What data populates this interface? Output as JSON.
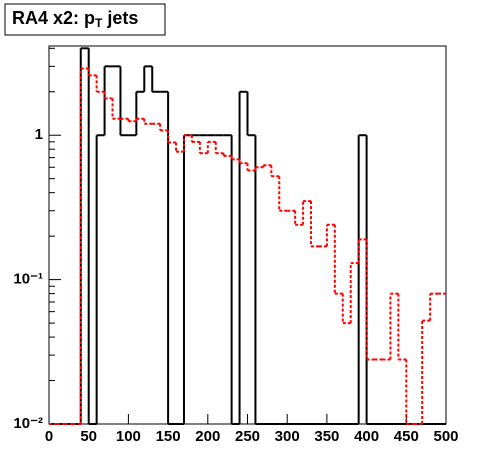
{
  "chart_data": {
    "type": "histogram",
    "title": [
      "RA4 x2: p",
      "T",
      " jets"
    ],
    "bins": [
      0,
      10,
      20,
      30,
      40,
      50,
      60,
      70,
      80,
      90,
      100,
      110,
      120,
      130,
      140,
      150,
      160,
      170,
      180,
      190,
      200,
      210,
      220,
      230,
      240,
      250,
      260,
      270,
      280,
      290,
      300,
      310,
      320,
      330,
      340,
      350,
      360,
      370,
      380,
      390,
      400,
      410,
      420,
      430,
      440,
      450,
      460,
      470,
      480,
      490,
      500
    ],
    "series": [
      {
        "color": "#000000",
        "dashed": false,
        "values": [
          0,
          0,
          0,
          0,
          4,
          0,
          1,
          3,
          3,
          1,
          1,
          2,
          3,
          2,
          2,
          0,
          0,
          1,
          1,
          1,
          1,
          1,
          1,
          0,
          2,
          1,
          0,
          0,
          0,
          0,
          0,
          0,
          0,
          0,
          0,
          0,
          0,
          0,
          0,
          1,
          0,
          0,
          0,
          0,
          0,
          0,
          0,
          0,
          0,
          0
        ]
      },
      {
        "color": "#ff0000",
        "dashed": true,
        "values": [
          0,
          0,
          0,
          0,
          2.9,
          2.6,
          2.0,
          1.8,
          1.3,
          1.3,
          1.25,
          1.3,
          1.2,
          1.2,
          1.08,
          0.89,
          0.77,
          1.0,
          0.9,
          0.75,
          0.9,
          0.75,
          0.72,
          0.68,
          0.64,
          0.57,
          0.6,
          0.62,
          0.52,
          0.3,
          0.3,
          0.24,
          0.35,
          0.17,
          0.17,
          0.24,
          0.08,
          0.05,
          0.13,
          0.19,
          0.028,
          0.028,
          0.028,
          0.08,
          0.028,
          0,
          0,
          0.052,
          0.08,
          0.08
        ]
      }
    ],
    "xlim": [
      0,
      500
    ],
    "xticks": [
      0,
      50,
      100,
      150,
      200,
      250,
      300,
      350,
      400,
      450,
      500
    ],
    "ylim": [
      0.01,
      4.15
    ],
    "log_y": true,
    "yticks": [
      {
        "value": 0.01,
        "label": "10⁻²"
      },
      {
        "value": 0.1,
        "label": "10⁻¹"
      },
      1
    ]
  }
}
